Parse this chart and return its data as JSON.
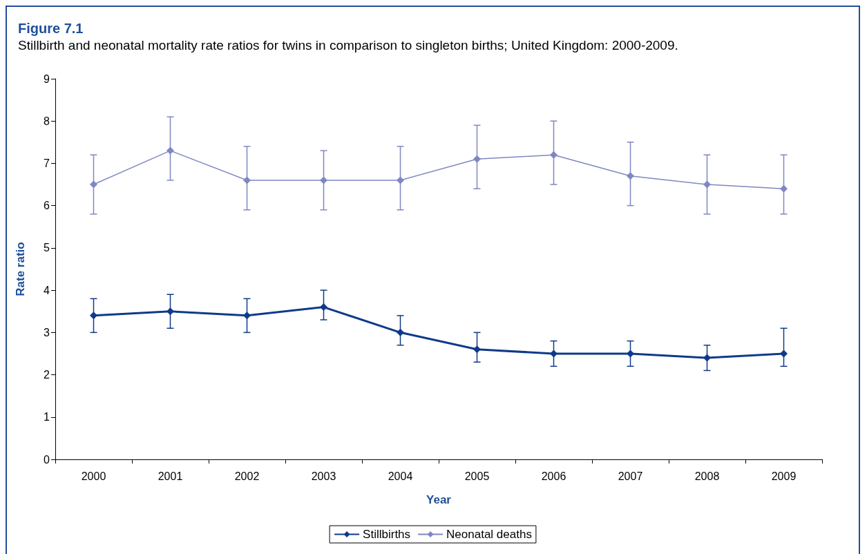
{
  "chart_data": {
    "type": "line",
    "title": "Figure 7.1",
    "subtitle": "Stillbirth and neonatal mortality rate ratios for twins in comparison to singleton births; United Kingdom: 2000-2009.",
    "xlabel": "Year",
    "ylabel": "Rate ratio",
    "categories": [
      "2000",
      "2001",
      "2002",
      "2003",
      "2004",
      "2005",
      "2006",
      "2007",
      "2008",
      "2009"
    ],
    "series": [
      {
        "name": "Stillbirths",
        "color": "#0f3a8a",
        "values": [
          3.4,
          3.5,
          3.4,
          3.6,
          3.0,
          2.6,
          2.5,
          2.5,
          2.4,
          2.5
        ],
        "errors": [
          [
            3.0,
            3.8
          ],
          [
            3.1,
            3.9
          ],
          [
            3.0,
            3.8
          ],
          [
            3.3,
            4.0
          ],
          [
            2.7,
            3.4
          ],
          [
            2.3,
            3.0
          ],
          [
            2.2,
            2.8
          ],
          [
            2.2,
            2.8
          ],
          [
            2.1,
            2.7
          ],
          [
            2.2,
            3.1
          ]
        ]
      },
      {
        "name": "Neonatal deaths",
        "color": "#7f87c2",
        "values": [
          6.5,
          7.3,
          6.6,
          6.6,
          6.6,
          7.1,
          7.2,
          6.7,
          6.5,
          6.4
        ],
        "errors": [
          [
            5.8,
            7.2
          ],
          [
            6.6,
            8.1
          ],
          [
            5.9,
            7.4
          ],
          [
            5.9,
            7.3
          ],
          [
            5.9,
            7.4
          ],
          [
            6.4,
            7.9
          ],
          [
            6.5,
            8.0
          ],
          [
            6.0,
            7.5
          ],
          [
            5.8,
            7.2
          ],
          [
            5.8,
            7.2
          ]
        ]
      }
    ],
    "ylim": [
      0,
      9
    ],
    "yticks": [
      0,
      1,
      2,
      3,
      4,
      5,
      6,
      7,
      8,
      9
    ],
    "grid": false,
    "legend": "bottom",
    "marker": "diamond",
    "line_style": "solid"
  }
}
